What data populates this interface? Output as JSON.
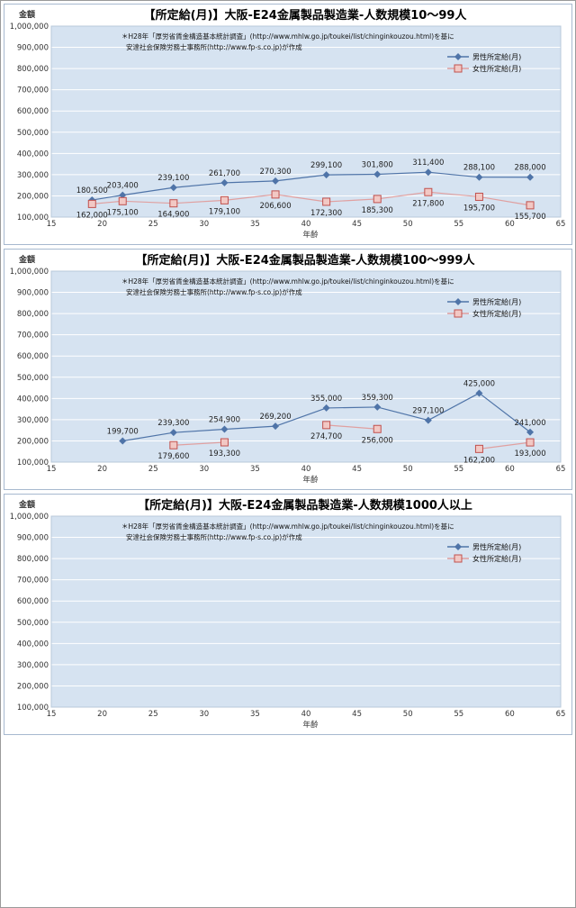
{
  "colors": {
    "plot_bg": "#d6e3f1",
    "gridline": "#ffffff",
    "male": "#4f74a8",
    "female_line": "#e0a0a0",
    "female_marker": "#c0504d",
    "female_fill": "#f2c8c4"
  },
  "source_note": {
    "line1": "＊H28年「厚労省賃金構造基本統計調査」(http://www.mhlw.go.jp/toukei/list/chinginkouzou.html)を基に",
    "line2": "安達社会保険労務士事務所(http://www.fp-s.co.jp)が作成"
  },
  "chart_data": [
    {
      "type": "line",
      "title": "【所定給(月)】大阪-E24金属製品製造業-人数規模10～99人",
      "ylabel": "金額",
      "xlabel": "年齢",
      "xlim": [
        15,
        65
      ],
      "ylim": [
        100000,
        1000000
      ],
      "x_ticks": [
        "15",
        "20",
        "25",
        "30",
        "35",
        "40",
        "45",
        "50",
        "55",
        "60",
        "65"
      ],
      "y_ticks": [
        "1,000,000",
        "900,000",
        "800,000",
        "700,000",
        "600,000",
        "500,000",
        "400,000",
        "300,000",
        "200,000",
        "100,000"
      ],
      "grid": true,
      "legend_position": "top-right",
      "series": [
        {
          "name": "男性所定給(月)",
          "marker": "diamond",
          "x": [
            19,
            22,
            27,
            32,
            37,
            42,
            47,
            52,
            57,
            62
          ],
          "values": [
            180500,
            203400,
            239100,
            261700,
            270300,
            299100,
            301800,
            311400,
            288100,
            288000
          ],
          "labels": [
            "180,500",
            "203,400",
            "239,100",
            "261,700",
            "270,300",
            "299,100",
            "301,800",
            "311,400",
            "288,100",
            "288,000"
          ]
        },
        {
          "name": "女性所定給(月)",
          "marker": "square",
          "x": [
            19,
            22,
            27,
            32,
            37,
            42,
            47,
            52,
            57,
            62
          ],
          "values": [
            162000,
            175100,
            164900,
            179100,
            206600,
            172300,
            185300,
            217800,
            195700,
            155700
          ],
          "labels": [
            "162,000",
            "175,100",
            "164,900",
            "179,100",
            "206,600",
            "172,300",
            "185,300",
            "217,800",
            "195,700",
            "155,700"
          ]
        }
      ]
    },
    {
      "type": "line",
      "title": "【所定給(月)】大阪-E24金属製品製造業-人数規模100～999人",
      "ylabel": "金額",
      "xlabel": "年齢",
      "xlim": [
        15,
        65
      ],
      "ylim": [
        100000,
        1000000
      ],
      "x_ticks": [
        "15",
        "20",
        "25",
        "30",
        "35",
        "40",
        "45",
        "50",
        "55",
        "60",
        "65"
      ],
      "y_ticks": [
        "1,000,000",
        "900,000",
        "800,000",
        "700,000",
        "600,000",
        "500,000",
        "400,000",
        "300,000",
        "200,000",
        "100,000"
      ],
      "grid": true,
      "legend_position": "top-right",
      "series": [
        {
          "name": "男性所定給(月)",
          "marker": "diamond",
          "x": [
            22,
            27,
            32,
            37,
            42,
            47,
            52,
            57,
            62
          ],
          "values": [
            199700,
            239300,
            254900,
            269200,
            355000,
            359300,
            297100,
            425000,
            241000
          ],
          "labels": [
            "199,700",
            "239,300",
            "254,900",
            "269,200",
            "355,000",
            "359,300",
            "297,100",
            "425,000",
            "241,000"
          ]
        },
        {
          "name": "女性所定給(月)",
          "marker": "square",
          "x": [
            27,
            32,
            null,
            42,
            47,
            null,
            57,
            62
          ],
          "values": [
            179600,
            193300,
            null,
            274700,
            256000,
            null,
            162200,
            193000
          ],
          "labels": [
            "179,600",
            "193,300",
            null,
            "274,700",
            "256,000",
            null,
            "162,200",
            "193,000"
          ]
        }
      ]
    },
    {
      "type": "line",
      "title": "【所定給(月)】大阪-E24金属製品製造業-人数規模1000人以上",
      "ylabel": "金額",
      "xlabel": "年齢",
      "xlim": [
        15,
        65
      ],
      "ylim": [
        100000,
        1000000
      ],
      "x_ticks": [
        "15",
        "20",
        "25",
        "30",
        "35",
        "40",
        "45",
        "50",
        "55",
        "60",
        "65"
      ],
      "y_ticks": [
        "1,000,000",
        "900,000",
        "800,000",
        "700,000",
        "600,000",
        "500,000",
        "400,000",
        "300,000",
        "200,000",
        "100,000"
      ],
      "grid": true,
      "legend_position": "top-right",
      "series": [
        {
          "name": "男性所定給(月)",
          "marker": "diamond",
          "x": [],
          "values": [],
          "labels": []
        },
        {
          "name": "女性所定給(月)",
          "marker": "square",
          "x": [],
          "values": [],
          "labels": []
        }
      ]
    }
  ]
}
